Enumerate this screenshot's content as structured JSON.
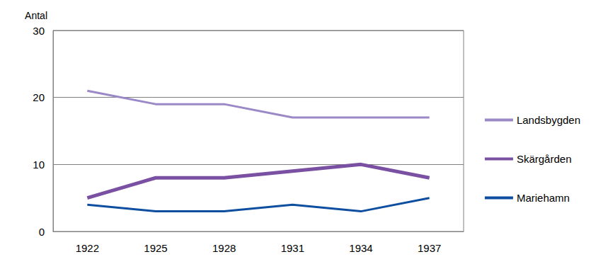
{
  "chart_data": {
    "type": "line",
    "y_label": "Antal",
    "categories": [
      "1922",
      "1925",
      "1928",
      "1931",
      "1934",
      "1937"
    ],
    "series": [
      {
        "name": "Landsbygden",
        "color": "#9b88c6",
        "values": [
          21,
          19,
          19,
          17,
          17,
          17
        ]
      },
      {
        "name": "Skärgården",
        "color": "#7a50a2",
        "values": [
          5,
          8,
          8,
          9,
          10,
          8
        ]
      },
      {
        "name": "Mariehamn",
        "color": "#0e4ea0",
        "values": [
          4,
          3,
          3,
          4,
          3,
          5
        ]
      }
    ],
    "ylim": [
      0,
      30
    ],
    "yticks": [
      0,
      10,
      20,
      30
    ],
    "grid": true,
    "legend": "right"
  }
}
